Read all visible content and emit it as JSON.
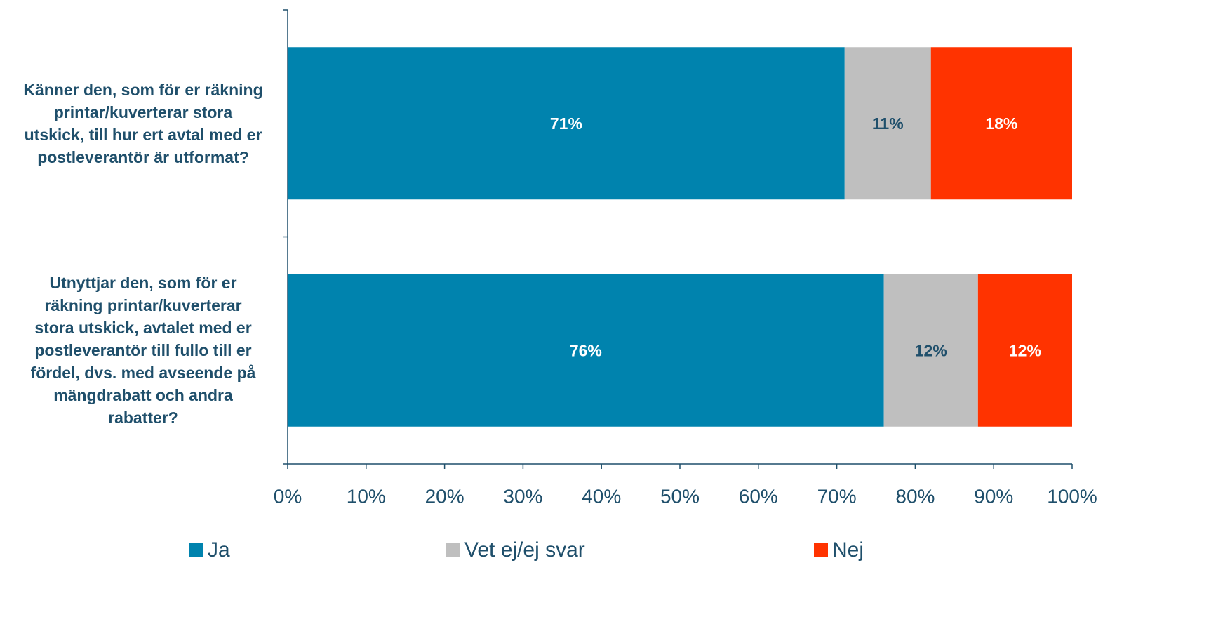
{
  "chart_data": {
    "type": "bar",
    "orientation": "horizontal",
    "stacked": true,
    "categories": [
      "Känner den, som för er räkning printar/kuverterar stora utskick, till hur ert avtal med er postleverantör är utformat?",
      "Utnyttjar den, som för er räkning printar/kuverterar stora utskick, avtalet med er postleverantör till fullo till er fördel, dvs. med avseende på mängdrabatt och andra rabatter?"
    ],
    "category_lines": [
      [
        "Känner den, som för er räkning",
        "printar/kuverterar stora",
        "utskick, till hur ert avtal med er",
        "postleverantör är utformat?"
      ],
      [
        "Utnyttjar den, som för er",
        "räkning printar/kuverterar",
        "stora utskick, avtalet med er",
        "postleverantör till fullo till er",
        "fördel, dvs. med avseende på",
        "mängdrabatt och andra",
        "rabatter?"
      ]
    ],
    "series": [
      {
        "name": "Ja",
        "values": [
          71,
          76
        ],
        "labels": [
          "71%",
          "76%"
        ],
        "color": "#0083AE",
        "label_color": "#FFFFFF"
      },
      {
        "name": "Vet ej/ej svar",
        "values": [
          11,
          12
        ],
        "labels": [
          "11%",
          "12%"
        ],
        "color": "#BFBFBF",
        "label_color": "#1F4F6B"
      },
      {
        "name": "Nej",
        "values": [
          18,
          12
        ],
        "labels": [
          "18%",
          "12%"
        ],
        "color": "#FF3300",
        "label_color": "#FFFFFF"
      }
    ],
    "xlim": [
      0,
      100
    ],
    "x_ticks": [
      "0%",
      "10%",
      "20%",
      "30%",
      "40%",
      "50%",
      "60%",
      "70%",
      "80%",
      "90%",
      "100%"
    ],
    "grid": false,
    "legend_position": "bottom",
    "axis_color": "#1F4F6B"
  }
}
